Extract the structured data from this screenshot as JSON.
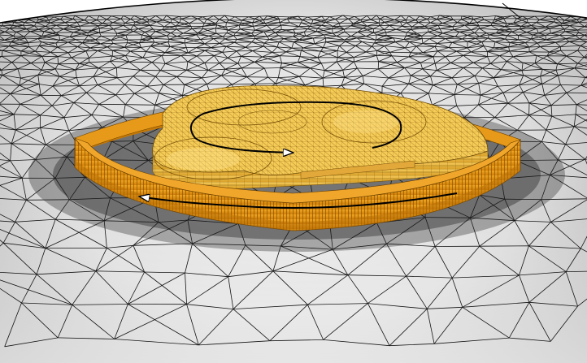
{
  "scene": {
    "subject": "meshed-rotor-assembly",
    "colors": {
      "background": "#ffffff",
      "domain_light": "#f4f4f4",
      "domain_dark": "#8f8f8f",
      "mesh_line": "#141414",
      "ring_gold": "#e08e0b",
      "ring_gold_dark": "#b86f05",
      "rotor_gold": "#f3c24a",
      "rotor_gold_light": "#ffd86a",
      "rotor_gold_dark": "#c9901c",
      "arrow": "#000000"
    },
    "rotation_arrows": [
      "inner-rotor-rotation-arrow",
      "outer-ring-rotation-arrow"
    ]
  }
}
